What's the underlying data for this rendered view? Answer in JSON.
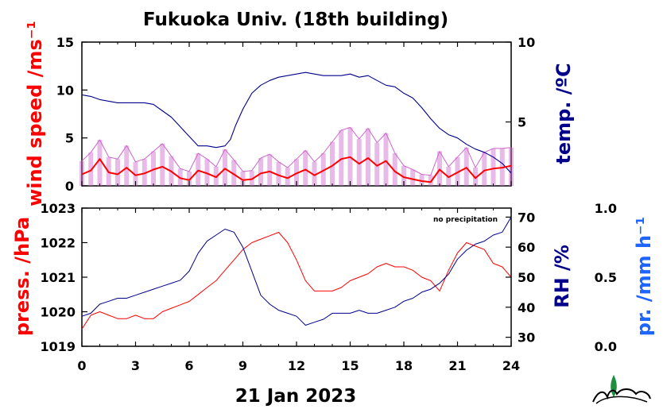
{
  "title": "Fukuoka Univ. (18th building)",
  "date_label": "21 Jan 2023",
  "note": "no precipitation",
  "colors": {
    "wind": "#ff0000",
    "wind_gust": "#cc66cc",
    "temp": "#00008b",
    "pressure": "#ff0000",
    "rh": "#00008b",
    "precip": "#1e64ff"
  },
  "chart_data": [
    {
      "type": "line",
      "panel": "top",
      "xlim": [
        0,
        24
      ],
      "xticks": [
        "0",
        "3",
        "6",
        "9",
        "12",
        "15",
        "18",
        "21",
        "24"
      ],
      "left_axis": {
        "label": "wind speed /ms⁻¹",
        "ylim": [
          0,
          15
        ],
        "ticks": [
          "0",
          "5",
          "10",
          "15"
        ]
      },
      "right_axis": {
        "label": "temp. /ºC",
        "ylim": [
          1,
          10
        ],
        "ticks": [
          "5",
          "10"
        ]
      },
      "series": [
        {
          "name": "temp",
          "axis": "right",
          "x": [
            0,
            0.5,
            1,
            1.5,
            2,
            2.5,
            3,
            3.5,
            4,
            4.5,
            5,
            5.5,
            6,
            6.5,
            7,
            7.5,
            8,
            8.3,
            8.6,
            9,
            9.5,
            10,
            10.5,
            11,
            11.5,
            12,
            12.5,
            13,
            13.5,
            14,
            14.5,
            15,
            15.5,
            16,
            16.5,
            17,
            17.5,
            18,
            18.5,
            19,
            19.5,
            20,
            20.5,
            21,
            21.5,
            22,
            22.5,
            23,
            23.5,
            24
          ],
          "y": [
            6.7,
            6.6,
            6.4,
            6.3,
            6.2,
            6.2,
            6.2,
            6.2,
            6.1,
            5.7,
            5.3,
            4.7,
            4.1,
            3.5,
            3.5,
            3.4,
            3.5,
            3.9,
            4.8,
            5.8,
            6.8,
            7.3,
            7.6,
            7.8,
            7.9,
            8.0,
            8.1,
            8.0,
            7.9,
            7.9,
            7.9,
            8.0,
            7.8,
            7.9,
            7.6,
            7.3,
            7.2,
            6.8,
            6.5,
            5.9,
            5.2,
            4.6,
            4.2,
            4.0,
            3.6,
            3.3,
            3.1,
            2.8,
            2.4,
            1.8
          ]
        },
        {
          "name": "wind",
          "axis": "left",
          "x": [
            0,
            0.5,
            1,
            1.5,
            2,
            2.5,
            3,
            3.5,
            4,
            4.5,
            5,
            5.5,
            6,
            6.5,
            7,
            7.5,
            8,
            8.5,
            9,
            9.5,
            10,
            10.5,
            11,
            11.5,
            12,
            12.5,
            13,
            13.5,
            14,
            14.5,
            15,
            15.5,
            16,
            16.5,
            17,
            17.5,
            18,
            18.5,
            19,
            19.5,
            20,
            20.5,
            21,
            21.5,
            22,
            22.5,
            23,
            23.5,
            24
          ],
          "y": [
            1.2,
            1.6,
            2.8,
            1.4,
            1.2,
            1.9,
            1.1,
            1.3,
            1.7,
            2.0,
            1.5,
            0.8,
            0.6,
            1.6,
            1.3,
            0.9,
            1.8,
            1.2,
            0.6,
            0.7,
            1.3,
            1.5,
            1.1,
            0.8,
            1.3,
            1.7,
            1.1,
            1.6,
            2.1,
            2.8,
            3.0,
            2.3,
            2.9,
            2.1,
            2.6,
            1.5,
            0.9,
            0.7,
            0.5,
            0.4,
            1.7,
            0.9,
            1.4,
            1.9,
            0.8,
            1.6,
            1.8,
            1.9,
            2.1
          ]
        },
        {
          "name": "gust",
          "axis": "left",
          "x": [
            0,
            0.5,
            1,
            1.5,
            2,
            2.5,
            3,
            3.5,
            4,
            4.5,
            5,
            5.5,
            6,
            6.5,
            7,
            7.5,
            8,
            8.5,
            9,
            9.5,
            10,
            10.5,
            11,
            11.5,
            12,
            12.5,
            13,
            13.5,
            14,
            14.5,
            15,
            15.5,
            16,
            16.5,
            17,
            17.5,
            18,
            18.5,
            19,
            19.5,
            20,
            20.5,
            21,
            21.5,
            22,
            22.5,
            23,
            23.5,
            24
          ],
          "y": [
            2.6,
            3.5,
            4.8,
            3.0,
            2.8,
            4.2,
            2.5,
            2.8,
            3.6,
            4.4,
            3.1,
            1.8,
            1.5,
            3.4,
            2.8,
            2.0,
            3.8,
            2.7,
            1.5,
            1.6,
            2.9,
            3.3,
            2.5,
            1.9,
            2.8,
            3.7,
            2.5,
            3.4,
            4.6,
            5.8,
            6.1,
            4.9,
            6.0,
            4.5,
            5.5,
            3.4,
            2.1,
            1.7,
            1.2,
            1.1,
            3.6,
            2.0,
            3.0,
            4.0,
            1.9,
            3.5,
            3.9,
            3.9,
            4.0
          ]
        }
      ]
    },
    {
      "type": "line",
      "panel": "bottom",
      "xlim": [
        0,
        24
      ],
      "xticks": [
        "0",
        "3",
        "6",
        "9",
        "12",
        "15",
        "18",
        "21",
        "24"
      ],
      "left_axis": {
        "label": "press. /hPa",
        "ylim": [
          1019,
          1023
        ],
        "ticks": [
          "1019",
          "1020",
          "1021",
          "1022",
          "1023"
        ]
      },
      "right_axis": {
        "label": "RH /%",
        "ylim": [
          27,
          73
        ],
        "ticks": [
          "30",
          "40",
          "50",
          "60",
          "70"
        ]
      },
      "far_right_axis": {
        "label": "pr. /mm h⁻¹",
        "ylim": [
          0,
          1
        ],
        "ticks": [
          "0.0",
          "0.5",
          "1.0"
        ]
      },
      "series": [
        {
          "name": "press",
          "axis": "left",
          "x": [
            0,
            0.5,
            1,
            1.5,
            2,
            2.5,
            3,
            3.5,
            4,
            4.5,
            5,
            5.5,
            6,
            6.5,
            7,
            7.5,
            8,
            8.5,
            9,
            9.5,
            10,
            10.5,
            11,
            11.5,
            12,
            12.5,
            13,
            13.5,
            14,
            14.5,
            15,
            15.5,
            16,
            16.5,
            17,
            17.5,
            18,
            18.5,
            19,
            19.5,
            20,
            20.5,
            21,
            21.5,
            22,
            22.5,
            23,
            23.5,
            24
          ],
          "y": [
            1019.5,
            1019.9,
            1020.0,
            1019.9,
            1019.8,
            1019.8,
            1019.9,
            1019.8,
            1019.8,
            1020.0,
            1020.1,
            1020.2,
            1020.3,
            1020.5,
            1020.7,
            1020.9,
            1021.2,
            1021.5,
            1021.8,
            1022.0,
            1022.1,
            1022.2,
            1022.3,
            1022.0,
            1021.5,
            1020.9,
            1020.6,
            1020.6,
            1020.6,
            1020.7,
            1020.9,
            1021.0,
            1021.1,
            1021.3,
            1021.4,
            1021.3,
            1021.3,
            1021.2,
            1021.0,
            1020.9,
            1020.6,
            1021.2,
            1021.7,
            1022.0,
            1021.9,
            1021.8,
            1021.4,
            1021.3,
            1021.0
          ]
        },
        {
          "name": "RH",
          "axis": "right",
          "x": [
            0,
            0.5,
            1,
            1.5,
            2,
            2.5,
            3,
            3.5,
            4,
            4.5,
            5,
            5.5,
            6,
            6.5,
            7,
            7.5,
            8,
            8.5,
            9,
            9.5,
            10,
            10.5,
            11,
            11.5,
            12,
            12.5,
            13,
            13.5,
            14,
            14.5,
            15,
            15.5,
            16,
            16.5,
            17,
            17.5,
            18,
            18.5,
            19,
            19.5,
            20,
            20.5,
            21,
            21.5,
            22,
            22.5,
            23,
            23.5,
            24
          ],
          "y": [
            37,
            38,
            41,
            42,
            43,
            43,
            44,
            45,
            46,
            47,
            48,
            49,
            52,
            58,
            62,
            64,
            66,
            65,
            60,
            52,
            44,
            41,
            39,
            38,
            37,
            34,
            35,
            36,
            38,
            38,
            38,
            39,
            38,
            38,
            39,
            40,
            42,
            43,
            45,
            46,
            48,
            51,
            56,
            59,
            61,
            62,
            64,
            65,
            70
          ]
        }
      ]
    }
  ]
}
